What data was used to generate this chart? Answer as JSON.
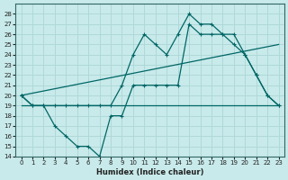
{
  "xlabel": "Humidex (Indice chaleur)",
  "xlim": [
    -0.5,
    23.5
  ],
  "ylim": [
    14,
    29
  ],
  "yticks": [
    14,
    15,
    16,
    17,
    18,
    19,
    20,
    21,
    22,
    23,
    24,
    25,
    26,
    27,
    28
  ],
  "xticks": [
    0,
    1,
    2,
    3,
    4,
    5,
    6,
    7,
    8,
    9,
    10,
    11,
    12,
    13,
    14,
    15,
    16,
    17,
    18,
    19,
    20,
    21,
    22,
    23
  ],
  "bg_color": "#c8eaea",
  "line_color": "#006666",
  "grid_color": "#b0d8d8",
  "series": [
    {
      "x": [
        0,
        1,
        2,
        3,
        4,
        5,
        6,
        7,
        8,
        9,
        10,
        11,
        12,
        13,
        14,
        15,
        16,
        17,
        18,
        19,
        20,
        21,
        22,
        23
      ],
      "y": [
        20,
        19,
        19,
        17,
        16,
        15,
        15,
        14,
        18,
        18,
        21,
        21,
        21,
        21,
        21,
        27,
        26,
        26,
        26,
        26,
        24,
        22,
        20,
        19
      ],
      "has_markers": true
    },
    {
      "x": [
        0,
        1,
        2,
        3,
        4,
        5,
        6,
        7,
        8,
        9,
        10,
        11,
        12,
        13,
        14,
        15,
        16,
        17,
        18,
        19,
        20,
        21,
        22,
        23
      ],
      "y": [
        20,
        19,
        19,
        19,
        19,
        19,
        19,
        19,
        19,
        21,
        24,
        26,
        25,
        24,
        26,
        28,
        27,
        27,
        26,
        25,
        24,
        22,
        20,
        19
      ],
      "has_markers": true
    },
    {
      "x": [
        0,
        23
      ],
      "y": [
        20,
        25
      ],
      "has_markers": false
    },
    {
      "x": [
        0,
        23
      ],
      "y": [
        19,
        19
      ],
      "has_markers": false
    }
  ]
}
